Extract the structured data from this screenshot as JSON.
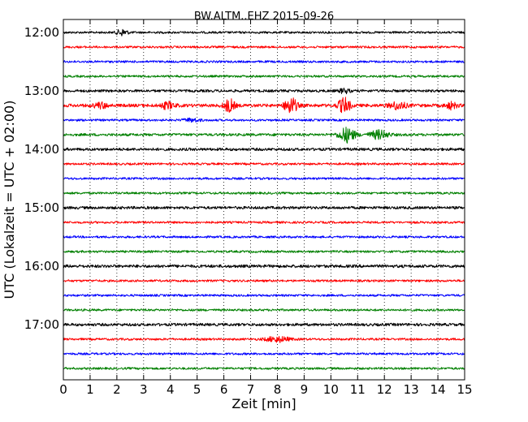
{
  "chart_data": {
    "type": "line",
    "title": "BW.ALTM..EHZ 2015-09-26",
    "xlabel": "Zeit  [min]",
    "ylabel": "UTC (Lokalzeit = UTC + 02:00)",
    "xlim": [
      0,
      15
    ],
    "x_ticks": [
      "0",
      "1",
      "2",
      "3",
      "4",
      "5",
      "6",
      "7",
      "8",
      "9",
      "10",
      "11",
      "12",
      "13",
      "14",
      "15"
    ],
    "y_ticks": [
      "12:00",
      "13:00",
      "14:00",
      "15:00",
      "16:00",
      "17:00"
    ],
    "grid": "x-only",
    "traces_per_hour": 4,
    "trace_colors": [
      "#000000",
      "#ff0000",
      "#0000ff",
      "#008000"
    ],
    "traces": [
      {
        "start": "12:00",
        "amplitude": 1.0,
        "events": [
          {
            "t": 2.2,
            "amp": 3,
            "dur": 0.2
          }
        ]
      },
      {
        "start": "12:15",
        "amplitude": 1.0,
        "events": []
      },
      {
        "start": "12:30",
        "amplitude": 1.0,
        "events": []
      },
      {
        "start": "12:45",
        "amplitude": 1.0,
        "events": []
      },
      {
        "start": "13:00",
        "amplitude": 1.2,
        "events": [
          {
            "t": 10.5,
            "amp": 2,
            "dur": 0.2
          }
        ]
      },
      {
        "start": "13:15",
        "amplitude": 1.5,
        "events": [
          {
            "t": 1.4,
            "amp": 2.5,
            "dur": 0.25
          },
          {
            "t": 3.9,
            "amp": 3,
            "dur": 0.25
          },
          {
            "t": 6.2,
            "amp": 6,
            "dur": 0.2
          },
          {
            "t": 8.5,
            "amp": 8,
            "dur": 0.22
          },
          {
            "t": 10.5,
            "amp": 7,
            "dur": 0.22
          },
          {
            "t": 12.5,
            "amp": 3.5,
            "dur": 0.3
          },
          {
            "t": 14.5,
            "amp": 3,
            "dur": 0.2
          }
        ]
      },
      {
        "start": "13:30",
        "amplitude": 1.0,
        "events": [
          {
            "t": 4.8,
            "amp": 1.5,
            "dur": 0.3
          }
        ]
      },
      {
        "start": "13:45",
        "amplitude": 1.2,
        "events": [
          {
            "t": 10.6,
            "amp": 7,
            "dur": 0.3
          },
          {
            "t": 11.8,
            "amp": 4,
            "dur": 0.35
          }
        ]
      },
      {
        "start": "14:00",
        "amplitude": 1.3,
        "events": []
      },
      {
        "start": "14:15",
        "amplitude": 1.0,
        "events": []
      },
      {
        "start": "14:30",
        "amplitude": 1.0,
        "events": []
      },
      {
        "start": "14:45",
        "amplitude": 1.0,
        "events": []
      },
      {
        "start": "15:00",
        "amplitude": 1.3,
        "events": []
      },
      {
        "start": "15:15",
        "amplitude": 1.0,
        "events": []
      },
      {
        "start": "15:30",
        "amplitude": 1.0,
        "events": []
      },
      {
        "start": "15:45",
        "amplitude": 1.0,
        "events": []
      },
      {
        "start": "16:00",
        "amplitude": 1.4,
        "events": []
      },
      {
        "start": "16:15",
        "amplitude": 1.0,
        "events": []
      },
      {
        "start": "16:30",
        "amplitude": 1.0,
        "events": []
      },
      {
        "start": "16:45",
        "amplitude": 1.0,
        "events": []
      },
      {
        "start": "17:00",
        "amplitude": 1.3,
        "events": []
      },
      {
        "start": "17:15",
        "amplitude": 1.0,
        "events": [
          {
            "t": 8.0,
            "amp": 2.5,
            "dur": 0.45
          }
        ]
      },
      {
        "start": "17:30",
        "amplitude": 1.0,
        "events": []
      },
      {
        "start": "17:45",
        "amplitude": 1.0,
        "events": []
      }
    ]
  }
}
